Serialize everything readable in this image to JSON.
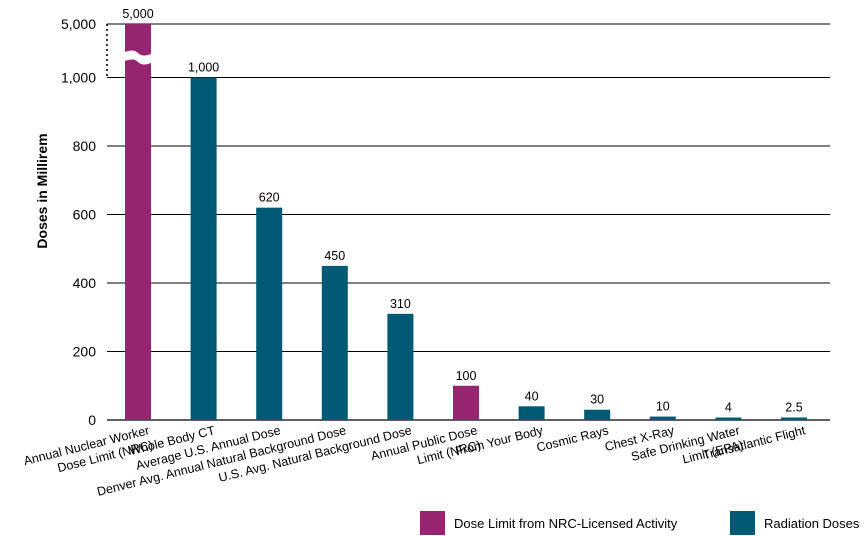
{
  "chart_data": {
    "type": "bar",
    "title": "",
    "xlabel": "",
    "ylabel": "Doses in Millirem",
    "y_ticks": [
      "0",
      "200",
      "400",
      "600",
      "800",
      "1,000",
      "5,000"
    ],
    "grid": true,
    "axis_break": "between 1,000 and 5,000",
    "legend_position": "bottom-right",
    "colors": {
      "nrc_limit": "#962570",
      "radiation": "#005a76"
    },
    "series": [
      {
        "name": "Dose Limit from NRC-Licensed Activity",
        "color_key": "nrc_limit"
      },
      {
        "name": "Radiation Doses",
        "color_key": "radiation"
      }
    ],
    "categories": [
      {
        "lines": [
          "Annual Nuclear Worker",
          "Dose Limit (NRC)"
        ],
        "value": 5000,
        "label": "5,000",
        "series": 0
      },
      {
        "lines": [
          "Whole Body CT"
        ],
        "value": 1000,
        "label": "1,000",
        "series": 1
      },
      {
        "lines": [
          "Average U.S. Annual Dose"
        ],
        "value": 620,
        "label": "620",
        "series": 1
      },
      {
        "lines": [
          "Denver Avg. Annual Natural Background Dose"
        ],
        "value": 450,
        "label": "450",
        "series": 1
      },
      {
        "lines": [
          "U.S. Avg. Natural Background Dose"
        ],
        "value": 310,
        "label": "310",
        "series": 1
      },
      {
        "lines": [
          "Annual Public Dose",
          "Limit (NRC)"
        ],
        "value": 100,
        "label": "100",
        "series": 0
      },
      {
        "lines": [
          "From Your Body"
        ],
        "value": 40,
        "label": "40",
        "series": 1
      },
      {
        "lines": [
          "Cosmic Rays"
        ],
        "value": 30,
        "label": "30",
        "series": 1
      },
      {
        "lines": [
          "Chest X-Ray"
        ],
        "value": 10,
        "label": "10",
        "series": 1
      },
      {
        "lines": [
          "Safe Drinking Water",
          "Limit (EPA)"
        ],
        "value": 4,
        "label": "4",
        "series": 1
      },
      {
        "lines": [
          "Transatlantic Flight"
        ],
        "value": 2.5,
        "label": "2.5",
        "series": 1
      }
    ]
  }
}
